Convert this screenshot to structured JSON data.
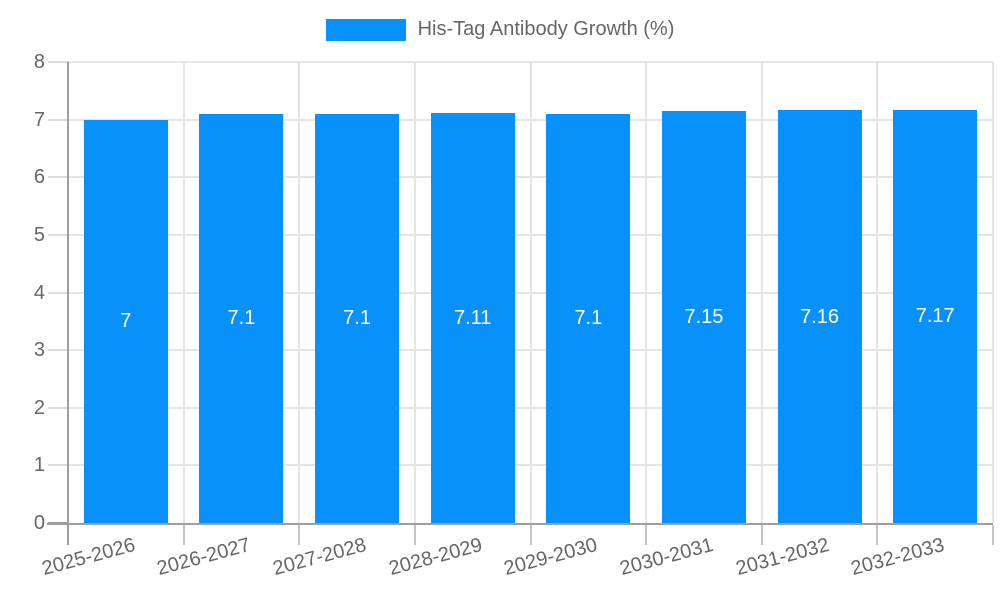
{
  "legend": {
    "label": "His-Tag Antibody Growth (%)"
  },
  "colors": {
    "bar": "#0991fb",
    "label_text": "#666666",
    "bar_value_text": "#ffffff",
    "grid": "#e5e5e5",
    "y_tick": "#dcdcdc",
    "x_tick": "#c4c4c4",
    "axis": "#9e9e9e",
    "background": "#ffffff"
  },
  "chart_data": {
    "type": "bar",
    "title": "His-Tag Antibody Growth (%)",
    "categories": [
      "2025-2026",
      "2026-2027",
      "2027-2028",
      "2028-2029",
      "2029-2030",
      "2030-2031",
      "2031-2032",
      "2032-2033"
    ],
    "values": [
      7,
      7.1,
      7.1,
      7.11,
      7.1,
      7.15,
      7.16,
      7.17
    ],
    "value_labels": [
      "7",
      "7.1",
      "7.1",
      "7.11",
      "7.1",
      "7.15",
      "7.16",
      "7.17"
    ],
    "series_name": "His-Tag Antibody Growth (%)",
    "xlabel": "",
    "ylabel": "",
    "ylim": [
      0,
      8
    ],
    "yticks": [
      0,
      1,
      2,
      3,
      4,
      5,
      6,
      7,
      8
    ],
    "grid": true,
    "legend_position": "top",
    "value_labels_position": "inside-center",
    "x_tick_rotation_deg": -15
  }
}
